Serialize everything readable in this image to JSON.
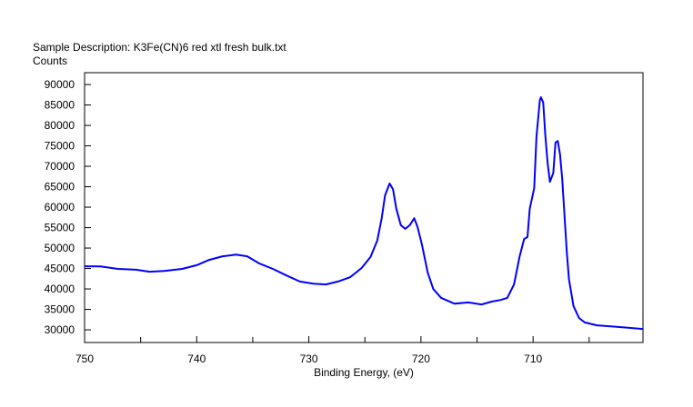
{
  "chart_data": {
    "type": "line",
    "title": "Sample Description:  K3Fe(CN)6 red xtl fresh bulk.txt",
    "ylabel": "Counts",
    "xlabel": "Binding Energy, (eV)",
    "xlim": [
      750,
      700.2
    ],
    "ylim": [
      26900,
      92900
    ],
    "x_reversed": true,
    "grid": false,
    "x_ticks": [
      750,
      740,
      730,
      720,
      710
    ],
    "x_tick_labels": [
      "750",
      "740",
      "730",
      "720",
      "710"
    ],
    "x_minor_ticks": [
      745,
      735,
      725,
      715,
      705
    ],
    "y_ticks": [
      30000,
      35000,
      40000,
      45000,
      50000,
      55000,
      60000,
      65000,
      70000,
      75000,
      80000,
      85000,
      90000
    ],
    "y_tick_labels": [
      "30000",
      "35000",
      "40000",
      "45000",
      "50000",
      "55000",
      "60000",
      "65000",
      "70000",
      "75000",
      "80000",
      "85000",
      "90000"
    ],
    "series": [
      {
        "name": "K3Fe(CN)6 red xtl fresh bulk",
        "color": "#0000ff",
        "x": [
          750,
          748.6,
          747,
          745.4,
          744.2,
          742.9,
          741.3,
          740,
          738.9,
          737.7,
          736.5,
          735.5,
          734.4,
          733.2,
          732,
          730.8,
          729.6,
          728.5,
          727.4,
          726.3,
          725.3,
          724.5,
          723.9,
          723.5,
          723.2,
          722.8,
          722.5,
          722.2,
          721.8,
          721.4,
          721.0,
          720.6,
          720.3,
          719.9,
          719.4,
          718.9,
          718.2,
          717.0,
          715.8,
          714.6,
          713.7,
          712.9,
          712.3,
          711.7,
          711.2,
          710.8,
          710.5,
          710.3,
          709.9,
          709.7,
          709.4,
          709.3,
          709.1,
          708.9,
          708.7,
          708.5,
          708.2,
          708.0,
          707.8,
          707.6,
          707.4,
          707.2,
          707.0,
          706.8,
          706.4,
          705.9,
          705.4,
          704.3,
          702.4,
          700.2
        ],
        "y": [
          45550,
          45500,
          44900,
          44700,
          44200,
          44400,
          44900,
          45800,
          47100,
          48000,
          48400,
          48000,
          46200,
          44900,
          43300,
          41800,
          41300,
          41100,
          41800,
          42900,
          45100,
          47800,
          51800,
          57300,
          62900,
          65800,
          64400,
          59600,
          55600,
          54700,
          55600,
          57300,
          55100,
          50700,
          44000,
          40000,
          37800,
          36400,
          36700,
          36200,
          36900,
          37300,
          37800,
          41100,
          48000,
          52200,
          52700,
          59600,
          64700,
          77300,
          86200,
          86900,
          85600,
          77300,
          70700,
          66200,
          68400,
          75800,
          76200,
          72900,
          66900,
          58000,
          49100,
          42400,
          35800,
          32900,
          31800,
          31100,
          30700,
          30200
        ]
      }
    ]
  }
}
